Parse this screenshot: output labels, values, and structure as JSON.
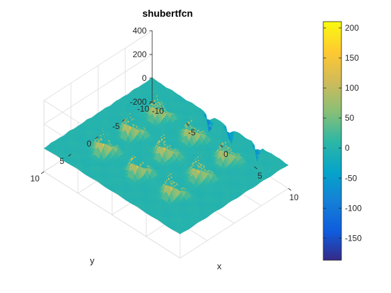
{
  "chart_data": {
    "type": "surface",
    "function": "shubertfcn",
    "title": "shubertfcn",
    "xlabel": "x",
    "ylabel": "y",
    "zlabel": "",
    "xlim": [
      -10,
      10
    ],
    "ylim": [
      -10,
      10
    ],
    "zlim": [
      -200,
      400
    ],
    "x_ticks": [
      -10,
      -5,
      0,
      5,
      10
    ],
    "y_ticks": [
      -10,
      -5,
      0,
      5,
      10
    ],
    "z_ticks": [
      -200,
      0,
      200,
      400
    ],
    "grid": true,
    "colorbar": {
      "limits": [
        -186.73,
        210.48
      ],
      "ticks": [
        -150,
        -100,
        -50,
        0,
        50,
        100,
        150,
        200
      ],
      "colormap": "parula"
    },
    "peaks": [
      {
        "x": -5,
        "y": 5,
        "z": 210
      },
      {
        "x": 0,
        "y": 5,
        "z": 200
      },
      {
        "x": 5,
        "y": 5,
        "z": 190
      },
      {
        "x": -5,
        "y": 0,
        "z": 200
      },
      {
        "x": 0,
        "y": 0,
        "z": 190
      },
      {
        "x": 5,
        "y": 0,
        "z": 180
      },
      {
        "x": -5,
        "y": -5,
        "z": 190
      },
      {
        "x": 0,
        "y": -5,
        "z": 180
      },
      {
        "x": 5,
        "y": -5,
        "z": 170
      }
    ],
    "troughs": [
      {
        "x": -1.5,
        "y": -10,
        "z": -186
      },
      {
        "x": 1.5,
        "y": -10,
        "z": -160
      },
      {
        "x": 5.5,
        "y": -10,
        "z": -150
      }
    ]
  }
}
